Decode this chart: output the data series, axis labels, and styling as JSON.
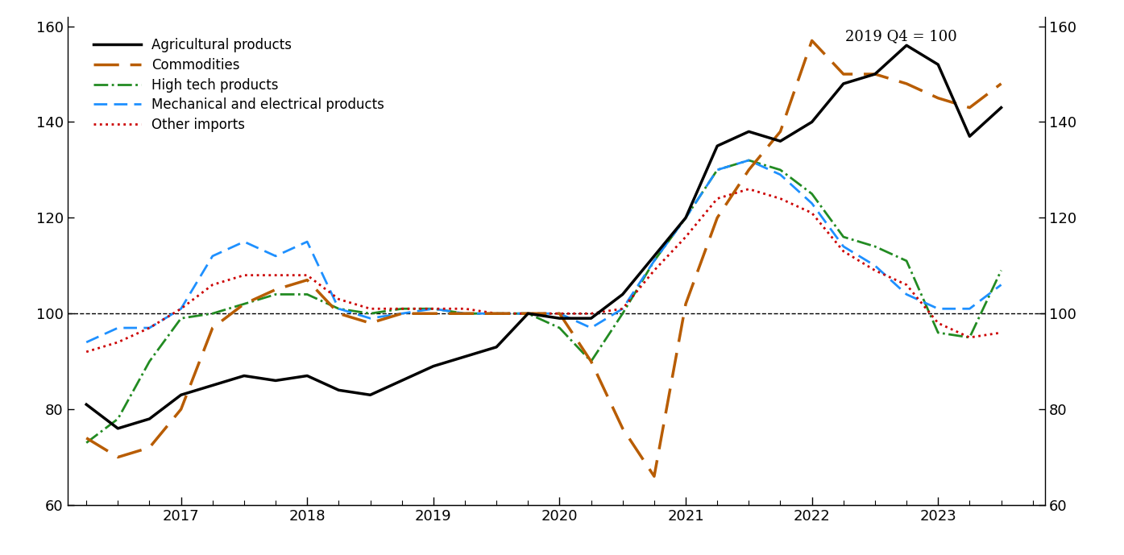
{
  "title_annotation": "2019 Q4 = 100",
  "ylim": [
    60,
    162
  ],
  "yticks": [
    60,
    80,
    100,
    120,
    140,
    160
  ],
  "background_color": "#ffffff",
  "hline_y": 100,
  "xlim": [
    2016.1,
    2023.85
  ],
  "series": {
    "agricultural": {
      "label": "Agricultural products",
      "color": "#000000",
      "linestyle": "-",
      "linewidth": 2.5,
      "x": [
        2016.25,
        2016.5,
        2016.75,
        2017.0,
        2017.25,
        2017.5,
        2017.75,
        2018.0,
        2018.25,
        2018.5,
        2018.75,
        2019.0,
        2019.25,
        2019.5,
        2019.75,
        2020.0,
        2020.25,
        2020.5,
        2020.75,
        2021.0,
        2021.25,
        2021.5,
        2021.75,
        2022.0,
        2022.25,
        2022.5,
        2022.75,
        2023.0,
        2023.25,
        2023.5
      ],
      "y": [
        81,
        76,
        78,
        83,
        85,
        87,
        86,
        87,
        84,
        83,
        86,
        89,
        91,
        93,
        100,
        99,
        99,
        104,
        112,
        120,
        135,
        138,
        136,
        140,
        148,
        150,
        156,
        152,
        137,
        143
      ]
    },
    "commodities": {
      "label": "Commodities",
      "color": "#b85c00",
      "linestyle": "--",
      "linewidth": 2.5,
      "dashes": [
        9,
        4
      ],
      "x": [
        2016.25,
        2016.5,
        2016.75,
        2017.0,
        2017.25,
        2017.5,
        2017.75,
        2018.0,
        2018.25,
        2018.5,
        2018.75,
        2019.0,
        2019.25,
        2019.5,
        2019.75,
        2020.0,
        2020.25,
        2020.5,
        2020.75,
        2021.0,
        2021.25,
        2021.5,
        2021.75,
        2022.0,
        2022.25,
        2022.5,
        2022.75,
        2023.0,
        2023.25,
        2023.5
      ],
      "y": [
        74,
        70,
        72,
        80,
        97,
        102,
        105,
        107,
        100,
        98,
        100,
        100,
        100,
        100,
        100,
        100,
        90,
        76,
        66,
        102,
        120,
        130,
        138,
        157,
        150,
        150,
        148,
        145,
        143,
        148
      ]
    },
    "hightech": {
      "label": "High tech products",
      "color": "#228b22",
      "linestyle": "-.",
      "linewidth": 2.0,
      "x": [
        2016.25,
        2016.5,
        2016.75,
        2017.0,
        2017.25,
        2017.5,
        2017.75,
        2018.0,
        2018.25,
        2018.5,
        2018.75,
        2019.0,
        2019.25,
        2019.5,
        2019.75,
        2020.0,
        2020.25,
        2020.5,
        2020.75,
        2021.0,
        2021.25,
        2021.5,
        2021.75,
        2022.0,
        2022.25,
        2022.5,
        2022.75,
        2023.0,
        2023.25,
        2023.5
      ],
      "y": [
        73,
        78,
        90,
        99,
        100,
        102,
        104,
        104,
        101,
        100,
        101,
        101,
        100,
        100,
        100,
        97,
        90,
        100,
        111,
        120,
        130,
        132,
        130,
        125,
        116,
        114,
        111,
        96,
        95,
        109
      ]
    },
    "mechanical": {
      "label": "Mechanical and electrical products",
      "color": "#1e90ff",
      "linestyle": "--",
      "linewidth": 2.0,
      "dashes": [
        6,
        3
      ],
      "x": [
        2016.25,
        2016.5,
        2016.75,
        2017.0,
        2017.25,
        2017.5,
        2017.75,
        2018.0,
        2018.25,
        2018.5,
        2018.75,
        2019.0,
        2019.25,
        2019.5,
        2019.75,
        2020.0,
        2020.25,
        2020.5,
        2020.75,
        2021.0,
        2021.25,
        2021.5,
        2021.75,
        2022.0,
        2022.25,
        2022.5,
        2022.75,
        2023.0,
        2023.25,
        2023.5
      ],
      "y": [
        94,
        97,
        97,
        101,
        112,
        115,
        112,
        115,
        101,
        99,
        100,
        101,
        100,
        100,
        100,
        100,
        97,
        101,
        111,
        120,
        130,
        132,
        129,
        123,
        114,
        110,
        104,
        101,
        101,
        106
      ]
    },
    "other": {
      "label": "Other imports",
      "color": "#cc0000",
      "linestyle": ":",
      "linewidth": 2.0,
      "x": [
        2016.25,
        2016.5,
        2016.75,
        2017.0,
        2017.25,
        2017.5,
        2017.75,
        2018.0,
        2018.25,
        2018.5,
        2018.75,
        2019.0,
        2019.25,
        2019.5,
        2019.75,
        2020.0,
        2020.25,
        2020.5,
        2020.75,
        2021.0,
        2021.25,
        2021.5,
        2021.75,
        2022.0,
        2022.25,
        2022.5,
        2022.75,
        2023.0,
        2023.25,
        2023.5
      ],
      "y": [
        92,
        94,
        97,
        101,
        106,
        108,
        108,
        108,
        103,
        101,
        101,
        101,
        101,
        100,
        100,
        100,
        100,
        101,
        109,
        116,
        124,
        126,
        124,
        121,
        113,
        109,
        106,
        98,
        95,
        96
      ]
    }
  },
  "xtick_years": [
    2017,
    2018,
    2019,
    2020,
    2021,
    2022,
    2023
  ],
  "legend_fontsize": 12,
  "annotation_fontsize": 13,
  "tick_labelsize": 13
}
